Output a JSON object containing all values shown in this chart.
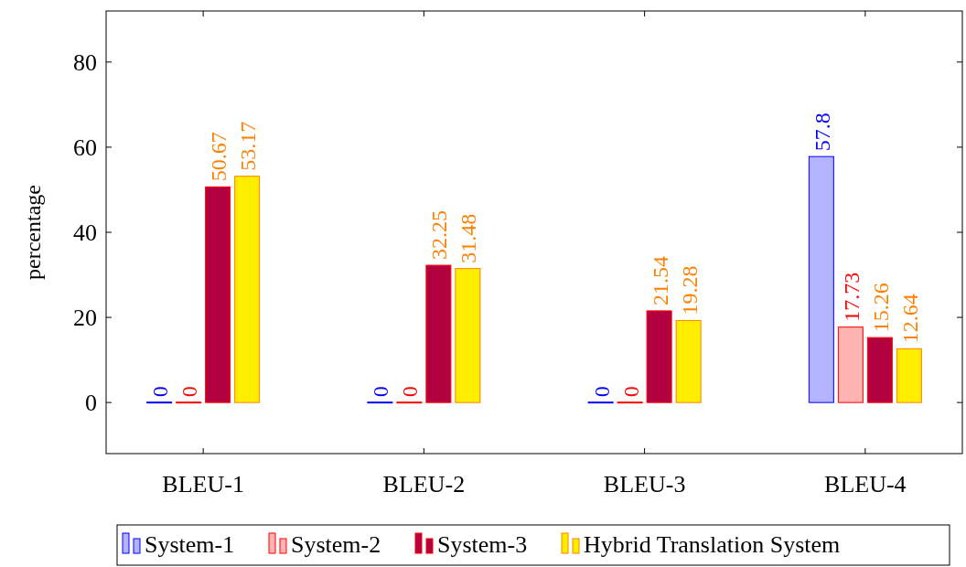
{
  "chart_data": {
    "type": "bar",
    "ylabel": "percentage",
    "categories": [
      "BLEU-1",
      "BLEU-2",
      "BLEU-3",
      "BLEU-4"
    ],
    "series": [
      {
        "name": "System-1",
        "color": "#b3b3ff",
        "values": [
          0,
          0,
          0,
          57.8
        ]
      },
      {
        "name": "System-2",
        "color": "#ffb3b3",
        "values": [
          0,
          0,
          0,
          17.73
        ]
      },
      {
        "name": "System-3",
        "color": "#b3003f",
        "values": [
          50.67,
          32.25,
          21.54,
          15.26
        ]
      },
      {
        "name": "Hybrid Translation System",
        "color": "#ffee00",
        "values": [
          53.17,
          31.48,
          19.28,
          12.64
        ]
      }
    ],
    "ylim": [
      -12,
      92
    ],
    "yticks": [
      0,
      20,
      40,
      60,
      80
    ],
    "data_labels": true,
    "legend": "bottom",
    "grid": false
  }
}
